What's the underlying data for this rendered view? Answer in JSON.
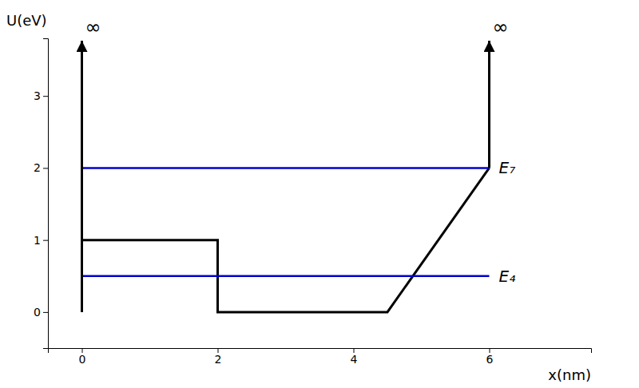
{
  "chart_data": {
    "type": "line",
    "xlabel": "x(nm)",
    "ylabel": "U(eV)",
    "xlim": [
      -0.5,
      7.5
    ],
    "ylim": [
      -0.5,
      3.8
    ],
    "xticks": [
      0,
      2,
      4,
      6
    ],
    "yticks": [
      0,
      1,
      2,
      3
    ],
    "series": [
      {
        "color": "#000000",
        "x": [
          0,
          0,
          2,
          2,
          4.5,
          6
        ],
        "values": [
          0,
          1,
          1,
          0,
          0,
          2
        ]
      },
      {
        "name": "E₇",
        "color": "#0000cd",
        "x": [
          0,
          6
        ],
        "values": [
          2.0,
          2.0
        ]
      },
      {
        "name": "E₄",
        "color": "#0000cd",
        "x": [
          0,
          6
        ],
        "values": [
          0.5,
          0.5
        ]
      }
    ],
    "annotations": [
      {
        "text": "∞",
        "x": 0
      },
      {
        "text": "∞",
        "x": 6
      }
    ]
  }
}
